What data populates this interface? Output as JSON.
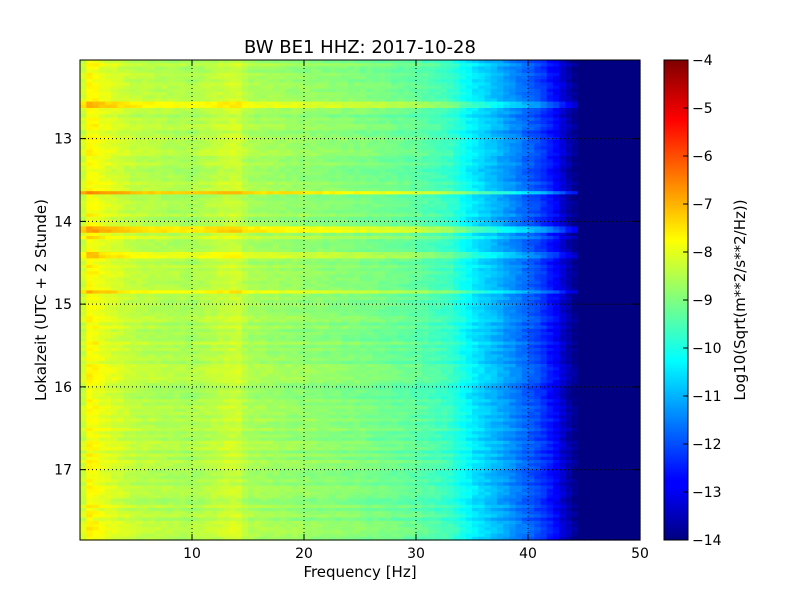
{
  "chart_data": {
    "type": "heatmap",
    "title": "BW BE1 HHZ: 2017-10-28",
    "xlabel": "Frequency [Hz]",
    "ylabel": "Lokalzeit (UTC + 2 Stunde)",
    "xlim": [
      0,
      50
    ],
    "ylim": [
      17.85,
      12.05
    ],
    "x_ticks": [
      10,
      20,
      30,
      40,
      50
    ],
    "y_ticks": [
      13,
      14,
      15,
      16,
      17
    ],
    "grid": true,
    "colormap": "jet",
    "colorbar": {
      "label": "Log10(Sqrt(m**2/s**2/Hz))",
      "range": [
        -14,
        -4
      ],
      "ticks": [
        -4,
        -5,
        -6,
        -7,
        -8,
        -9,
        -10,
        -11,
        -12,
        -13,
        -14
      ]
    },
    "spectral_profile": {
      "frequency_hz": [
        0,
        0.5,
        1,
        2,
        5,
        10,
        13,
        14,
        15,
        20,
        25,
        30,
        33,
        35,
        38,
        41,
        42.5,
        43.5,
        44.5,
        50
      ],
      "log10_amplitude": [
        -8.8,
        -7.8,
        -7.7,
        -8.0,
        -8.4,
        -8.6,
        -8.3,
        -8.2,
        -8.6,
        -8.8,
        -9.0,
        -9.3,
        -9.7,
        -10.4,
        -11.2,
        -12.1,
        -12.8,
        -13.5,
        -14,
        -14
      ]
    },
    "bright_bands": [
      {
        "time": 12.6,
        "log10_amplitude_offset": 0.8
      },
      {
        "time": 13.65,
        "log10_amplitude_offset": 1.1
      },
      {
        "time": 14.1,
        "log10_amplitude_offset": 0.9
      },
      {
        "time": 14.2,
        "log10_amplitude_offset": 0.5
      },
      {
        "time": 14.4,
        "log10_amplitude_offset": 0.6
      },
      {
        "time": 14.85,
        "log10_amplitude_offset": 0.6
      }
    ]
  }
}
